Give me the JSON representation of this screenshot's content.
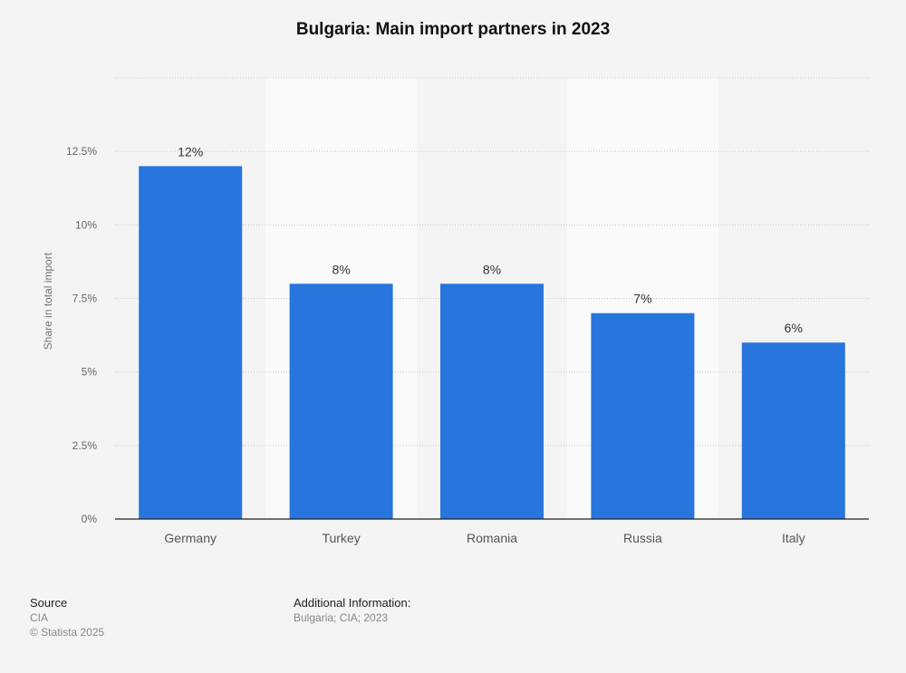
{
  "chart_data": {
    "type": "bar",
    "title": "Bulgaria: Main import partners in 2023",
    "categories": [
      "Germany",
      "Turkey",
      "Romania",
      "Russia",
      "Italy"
    ],
    "values": [
      12,
      8,
      8,
      7,
      6
    ],
    "data_labels": [
      "12%",
      "8%",
      "8%",
      "7%",
      "6%"
    ],
    "xlabel": "",
    "ylabel": "Share in total import",
    "ylim": [
      0,
      15
    ],
    "yticks": [
      0,
      2.5,
      5,
      7.5,
      10,
      12.5,
      15
    ],
    "ytick_labels": [
      "0%",
      "2.5%",
      "5%",
      "7.5%",
      "10%",
      "12.5%",
      ""
    ],
    "grid": true,
    "bar_color": "#2876dd"
  },
  "footer": {
    "source_heading": "Source",
    "source_value": "CIA",
    "copyright": "© Statista 2025",
    "info_heading": "Additional Information:",
    "info_value": "Bulgaria; CIA; 2023"
  }
}
